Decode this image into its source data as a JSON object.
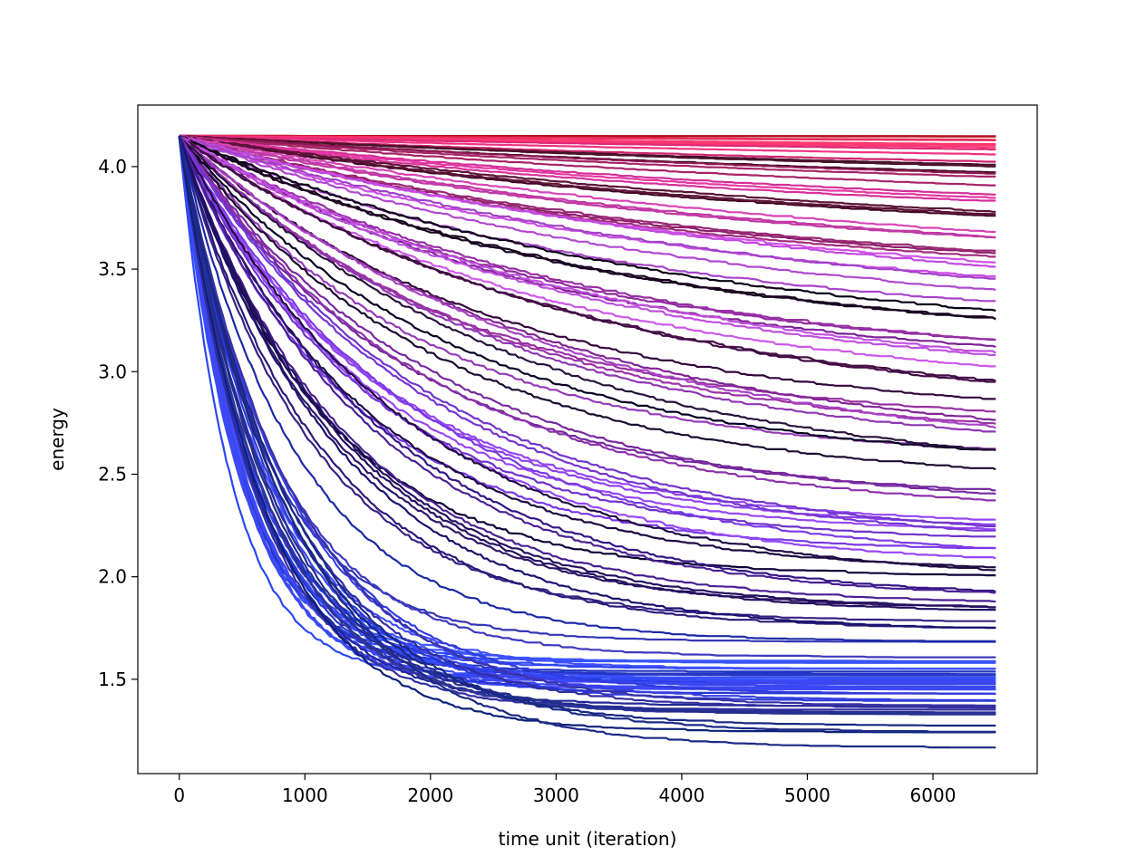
{
  "chart_data": {
    "type": "line",
    "title": "",
    "xlabel": "time unit (iteration)",
    "ylabel": "energy",
    "xlim": [
      -330,
      6830
    ],
    "ylim": [
      1.04,
      4.3
    ],
    "xticks": [
      0,
      1000,
      2000,
      3000,
      4000,
      5000,
      6000
    ],
    "xtick_labels": [
      "0",
      "1000",
      "2000",
      "3000",
      "4000",
      "5000",
      "6000"
    ],
    "yticks": [
      1.5,
      2.0,
      2.5,
      3.0,
      3.5,
      4.0
    ],
    "ytick_labels": [
      "1.5",
      "2.0",
      "2.5",
      "3.0",
      "3.5",
      "4.0"
    ],
    "grid": false,
    "legend": "none",
    "series_count": 120,
    "start": {
      "x": 0,
      "y": 4.15
    },
    "x_end": 6500,
    "final_energy_range": [
      1.17,
      4.14
    ],
    "color_scale": {
      "low_energy": [
        "#1a237e",
        "#2c3cf0",
        "#3d55ff"
      ],
      "mid_energy": [
        "#1a0533",
        "#3a1a8a",
        "#7a3af0",
        "#b54cf5"
      ],
      "high_energy": [
        "#5a0a2a",
        "#c02a7a",
        "#e8306a",
        "#c4182a"
      ]
    },
    "series": [
      {
        "final": 1.17,
        "rate": 0.00115,
        "color": "#142580"
      },
      {
        "final": 1.3,
        "rate": 0.0012,
        "color": "#1e2a8a"
      },
      {
        "final": 1.35,
        "rate": 0.0013,
        "color": "#2a2a9a"
      },
      {
        "final": 1.4,
        "rate": 0.0014,
        "color": "#2b38d8"
      },
      {
        "final": 1.45,
        "rate": 0.0016,
        "color": "#3544f0"
      },
      {
        "final": 1.48,
        "rate": 0.0018,
        "color": "#2e40e8"
      },
      {
        "final": 1.5,
        "rate": 0.002,
        "color": "#3a50ff"
      },
      {
        "final": 1.52,
        "rate": 0.0017,
        "color": "#2838c8"
      },
      {
        "final": 1.55,
        "rate": 0.0015,
        "color": "#3046f2"
      },
      {
        "final": 1.58,
        "rate": 0.0019,
        "color": "#3f58ff"
      },
      {
        "final": 1.6,
        "rate": 0.0012,
        "color": "#2a30b0"
      },
      {
        "final": 1.72,
        "rate": 0.0009,
        "color": "#2a1a7a"
      },
      {
        "final": 1.82,
        "rate": 0.0008,
        "color": "#251060"
      },
      {
        "final": 1.85,
        "rate": 0.00075,
        "color": "#3a1888"
      },
      {
        "final": 1.95,
        "rate": 0.0007,
        "color": "#1c0840"
      },
      {
        "final": 2.05,
        "rate": 0.00065,
        "color": "#8a40f0"
      },
      {
        "final": 2.15,
        "rate": 0.0006,
        "color": "#6a30c8"
      },
      {
        "final": 2.2,
        "rate": 0.00055,
        "color": "#9a48f5"
      },
      {
        "final": 2.28,
        "rate": 0.0005,
        "color": "#7a2aa0"
      },
      {
        "final": 2.45,
        "rate": 0.00045,
        "color": "#1a0a30"
      },
      {
        "final": 2.55,
        "rate": 0.0004,
        "color": "#a040c0"
      },
      {
        "final": 2.62,
        "rate": 0.00038,
        "color": "#8a2a9a"
      },
      {
        "final": 2.75,
        "rate": 0.00035,
        "color": "#3a0a40"
      },
      {
        "final": 2.85,
        "rate": 0.00032,
        "color": "#c050e0"
      },
      {
        "final": 2.95,
        "rate": 0.0003,
        "color": "#902aa0"
      },
      {
        "final": 3.05,
        "rate": 0.00028,
        "color": "#1a0520"
      },
      {
        "final": 3.15,
        "rate": 0.00026,
        "color": "#b048d0"
      },
      {
        "final": 3.25,
        "rate": 0.00024,
        "color": "#d050e8"
      },
      {
        "final": 3.35,
        "rate": 0.00022,
        "color": "#a02a7a"
      },
      {
        "final": 3.45,
        "rate": 0.0002,
        "color": "#c43aa8"
      },
      {
        "final": 3.55,
        "rate": 0.00018,
        "color": "#4a0a2a"
      },
      {
        "final": 3.65,
        "rate": 0.00016,
        "color": "#d8309a"
      },
      {
        "final": 3.75,
        "rate": 0.00014,
        "color": "#a02060"
      },
      {
        "final": 3.85,
        "rate": 0.00012,
        "color": "#3a0a20"
      },
      {
        "final": 3.92,
        "rate": 0.0001,
        "color": "#e02a78"
      },
      {
        "final": 4.0,
        "rate": 8e-05,
        "color": "#f0306a"
      },
      {
        "final": 4.08,
        "rate": 6e-05,
        "color": "#d82450"
      },
      {
        "final": 4.14,
        "rate": 4e-05,
        "color": "#c4182a"
      }
    ]
  }
}
